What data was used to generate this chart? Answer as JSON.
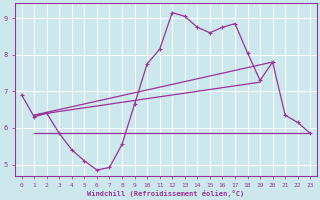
{
  "bg_color": "#cce8ec",
  "line_color": "#993399",
  "grid_color": "#ffffff",
  "xlabel": "Windchill (Refroidissement éolien,°C)",
  "xlim": [
    -0.5,
    23.5
  ],
  "ylim": [
    4.7,
    9.4
  ],
  "yticks": [
    5,
    6,
    7,
    8,
    9
  ],
  "xticks": [
    0,
    1,
    2,
    3,
    4,
    5,
    6,
    7,
    8,
    9,
    10,
    11,
    12,
    13,
    14,
    15,
    16,
    17,
    18,
    19,
    20,
    21,
    22,
    23
  ],
  "series1_x": [
    0,
    1,
    2,
    3,
    4,
    5,
    6,
    7,
    8,
    9,
    10,
    11,
    12,
    13,
    14,
    15,
    16,
    17,
    18,
    19,
    20,
    21,
    22,
    23
  ],
  "series1_y": [
    6.9,
    6.3,
    6.4,
    5.85,
    5.4,
    5.1,
    4.85,
    4.92,
    5.55,
    6.65,
    7.75,
    8.15,
    9.15,
    9.05,
    8.75,
    8.6,
    8.75,
    8.85,
    8.05,
    7.3,
    7.8,
    6.35,
    6.15,
    5.85
  ],
  "series2_x": [
    1,
    23
  ],
  "series2_y": [
    5.85,
    5.85
  ],
  "series3_x": [
    1,
    20
  ],
  "series3_y": [
    6.35,
    7.8
  ],
  "series4_x": [
    1,
    19
  ],
  "series4_y": [
    6.35,
    7.25
  ],
  "marker": "+"
}
